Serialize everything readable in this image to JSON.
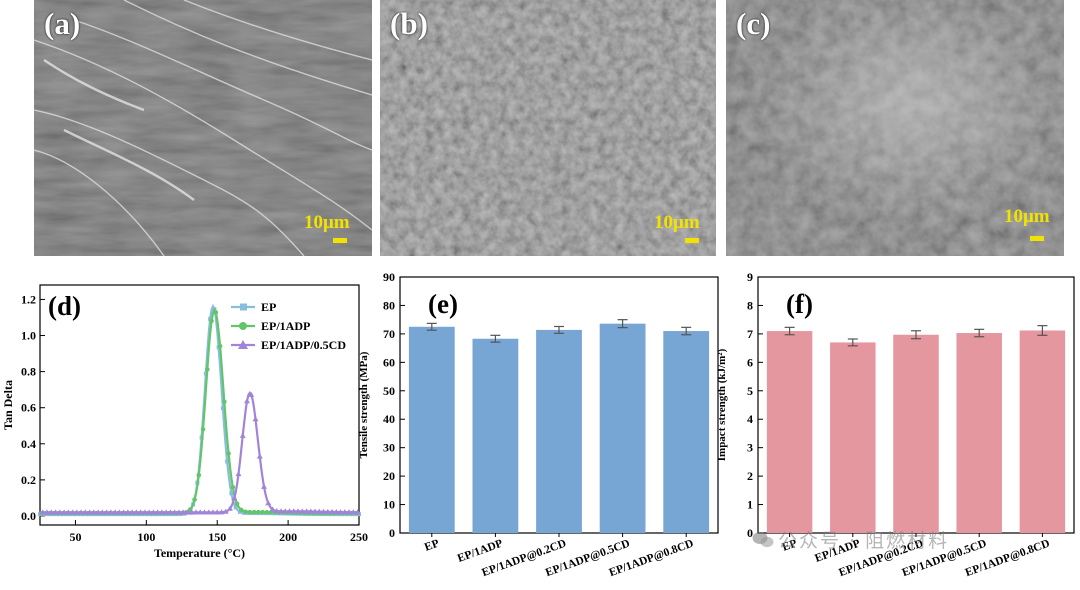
{
  "sem_panels": [
    {
      "label": "(a)",
      "scale": "10μm"
    },
    {
      "label": "(b)",
      "scale": "10μm"
    },
    {
      "label": "(c)",
      "scale": "10μm"
    }
  ],
  "watermark": "公众号 · 阻燃材料",
  "colors": {
    "ep": "#88bedd",
    "ep_1adp": "#63c46c",
    "ep_1adp_05cd": "#a184d8",
    "tensile_bar": "#77a6d4",
    "impact_bar": "#e4979f",
    "scale": "#f2e200"
  },
  "chart_data": [
    {
      "id": "d",
      "type": "line",
      "panel_label": "(d)",
      "title": "",
      "xlabel": "Temperature (°C)",
      "ylabel": "Tan Delta",
      "xlim": [
        25,
        250
      ],
      "ylim": [
        -0.05,
        1.28
      ],
      "xticks": [
        50,
        100,
        150,
        200,
        250
      ],
      "yticks": [
        0.0,
        0.2,
        0.4,
        0.6,
        0.8,
        1.0,
        1.2
      ],
      "ytick_labels": [
        "0.0",
        "0.2",
        "0.4",
        "0.6",
        "0.8",
        "1.0",
        "1.2"
      ],
      "legend_position": "top-right",
      "series": [
        {
          "name": "EP",
          "marker": "square",
          "baseline": 0.01,
          "peak_x": 147,
          "peak_y": 1.16,
          "left_width": 8.0,
          "right_width": 8.5
        },
        {
          "name": "EP/1ADP",
          "marker": "circle",
          "baseline": 0.015,
          "peak_x": 148,
          "peak_y": 1.14,
          "left_width": 8.5,
          "right_width": 9.0
        },
        {
          "name": "EP/1ADP/0.5CD",
          "marker": "triangle",
          "baseline": 0.02,
          "peak_x": 173,
          "peak_y": 0.68,
          "left_width": 7.5,
          "right_width": 8.0
        }
      ]
    },
    {
      "id": "e",
      "type": "bar",
      "panel_label": "(e)",
      "title": "",
      "xlabel": "",
      "ylabel": "Tensile strength (MPa)",
      "ylim": [
        0,
        90
      ],
      "yticks": [
        0,
        10,
        20,
        30,
        40,
        50,
        60,
        70,
        80,
        90
      ],
      "categories": [
        "EP",
        "EP/1ADP",
        "EP/1ADP@0.2CD",
        "EP/1ADP@0.5CD",
        "EP/1ADP@0.8CD"
      ],
      "values": [
        72.5,
        68.3,
        71.4,
        73.6,
        71.0
      ],
      "errors": [
        1.2,
        1.2,
        1.2,
        1.4,
        1.3
      ]
    },
    {
      "id": "f",
      "type": "bar",
      "panel_label": "(f)",
      "title": "",
      "xlabel": "",
      "ylabel": "Impact strength (kJ/m²)",
      "ylim": [
        0,
        9
      ],
      "yticks": [
        0,
        1,
        2,
        3,
        4,
        5,
        6,
        7,
        8,
        9
      ],
      "categories": [
        "EP",
        "EP/1ADP",
        "EP/1ADP@0.2CD",
        "EP/1ADP@0.5CD",
        "EP/1ADP@0.8CD"
      ],
      "values": [
        7.1,
        6.7,
        6.97,
        7.03,
        7.12
      ],
      "errors": [
        0.13,
        0.12,
        0.14,
        0.13,
        0.17
      ]
    }
  ]
}
